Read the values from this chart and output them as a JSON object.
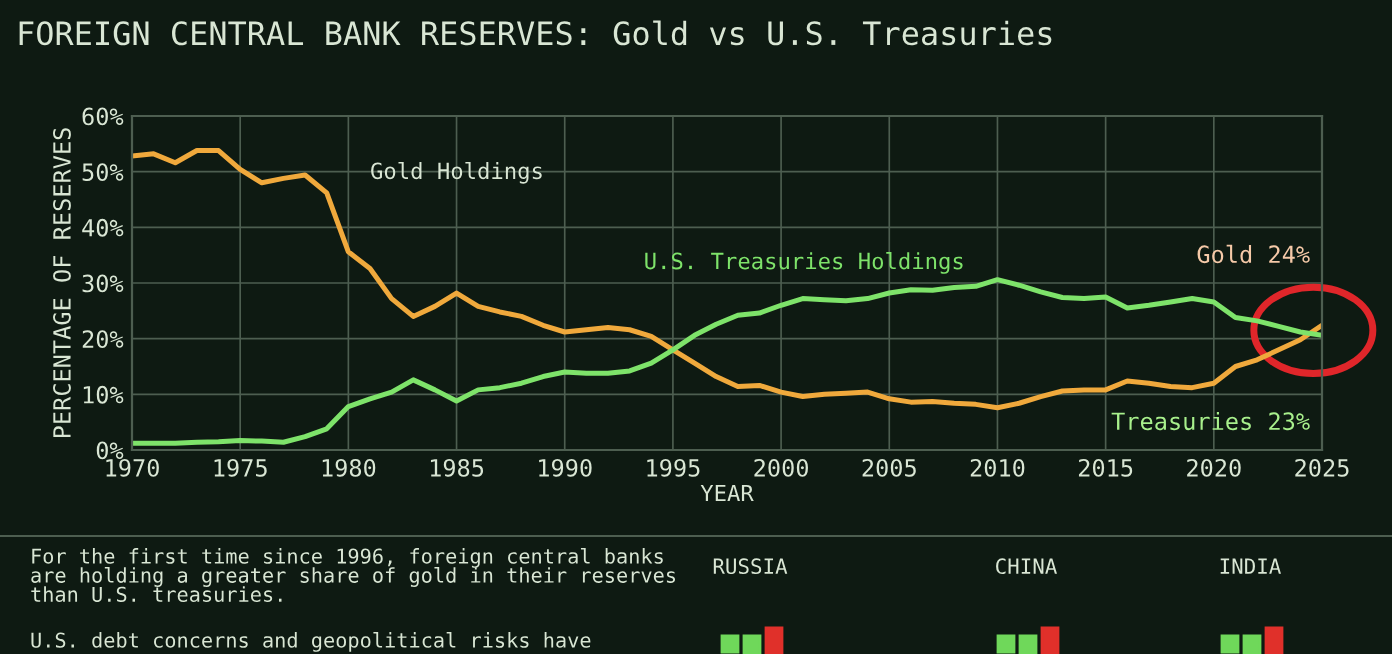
{
  "chart_data": {
    "type": "line",
    "title": "FOREIGN CENTRAL BANK RESERVES: Gold vs U.S. Treasuries",
    "xlabel": "YEAR",
    "ylabel": "PERCENTAGE OF RESERVES",
    "x": [
      1970,
      1971,
      1972,
      1973,
      1974,
      1975,
      1976,
      1977,
      1978,
      1979,
      1980,
      1981,
      1982,
      1983,
      1984,
      1985,
      1986,
      1987,
      1988,
      1989,
      1990,
      1991,
      1992,
      1993,
      1994,
      1995,
      1996,
      1997,
      1998,
      1999,
      2000,
      2001,
      2002,
      2003,
      2004,
      2005,
      2006,
      2007,
      2008,
      2009,
      2010,
      2011,
      2012,
      2013,
      2014,
      2015,
      2016,
      2017,
      2018,
      2019,
      2020,
      2021,
      2022,
      2023,
      2024,
      2025
    ],
    "series": [
      {
        "name": "Gold Holdings",
        "color": "#f0a93c",
        "values": [
          52.8,
          53.2,
          51.6,
          53.8,
          53.8,
          50.4,
          48,
          48.8,
          49.4,
          46.2,
          35.6,
          32.6,
          27.2,
          24,
          25.8,
          28.2,
          25.8,
          24.8,
          24,
          22.4,
          21.2,
          21.6,
          22,
          21.6,
          20.4,
          18,
          15.6,
          13.2,
          11.4,
          11.6,
          10.4,
          9.6,
          10,
          10.2,
          10.4,
          9.2,
          8.6,
          8.7,
          8.4,
          8.2,
          7.6,
          8.4,
          9.6,
          10.6,
          10.8,
          10.8,
          12.4,
          12,
          11.4,
          11.2,
          12,
          15,
          16.2,
          18,
          19.8,
          22.4
        ]
      },
      {
        "name": "U.S. Treasuries Holdings",
        "color": "#7ee36a",
        "values": [
          1.2,
          1.2,
          1.2,
          1.4,
          1.5,
          1.7,
          1.6,
          1.4,
          2.4,
          3.8,
          7.8,
          9.2,
          10.4,
          12.6,
          10.8,
          8.8,
          10.8,
          11.2,
          12,
          13.2,
          14,
          13.8,
          13.8,
          14.2,
          15.6,
          18,
          20.6,
          22.6,
          24.2,
          24.6,
          26,
          27.2,
          27,
          26.8,
          27.2,
          28.2,
          28.8,
          28.7,
          29.2,
          29.4,
          30.6,
          29.6,
          28.4,
          27.4,
          27.2,
          27.5,
          25.5,
          26,
          26.6,
          27.2,
          26.6,
          23.8,
          23.2,
          22.2,
          21.2,
          20.6
        ]
      }
    ],
    "xlim": [
      1970,
      2025
    ],
    "xticks": [
      1970,
      1975,
      1980,
      1985,
      1990,
      1995,
      2000,
      2005,
      2010,
      2015,
      2020,
      2025
    ],
    "ylim": [
      0,
      60
    ],
    "yticks": [
      {
        "value": 0,
        "label": "0%"
      },
      {
        "value": 10,
        "label": "10%"
      },
      {
        "value": 20,
        "label": "20%"
      },
      {
        "value": 30,
        "label": "30%"
      },
      {
        "value": 40,
        "label": "40%"
      },
      {
        "value": 50,
        "label": "50%"
      },
      {
        "value": 60,
        "label": "60%"
      }
    ],
    "grid": true,
    "legend": false,
    "annotations": [
      "Gold 24%",
      "Treasuries 23%",
      "For the first time since 1996, foreign central banks\nare holding a greater share of gold in their reserves\nthan U.S. treasuries.",
      "U.S. debt concerns and geopolitical risks have",
      "RUSSIA",
      "CHINA",
      "INDIA"
    ]
  }
}
